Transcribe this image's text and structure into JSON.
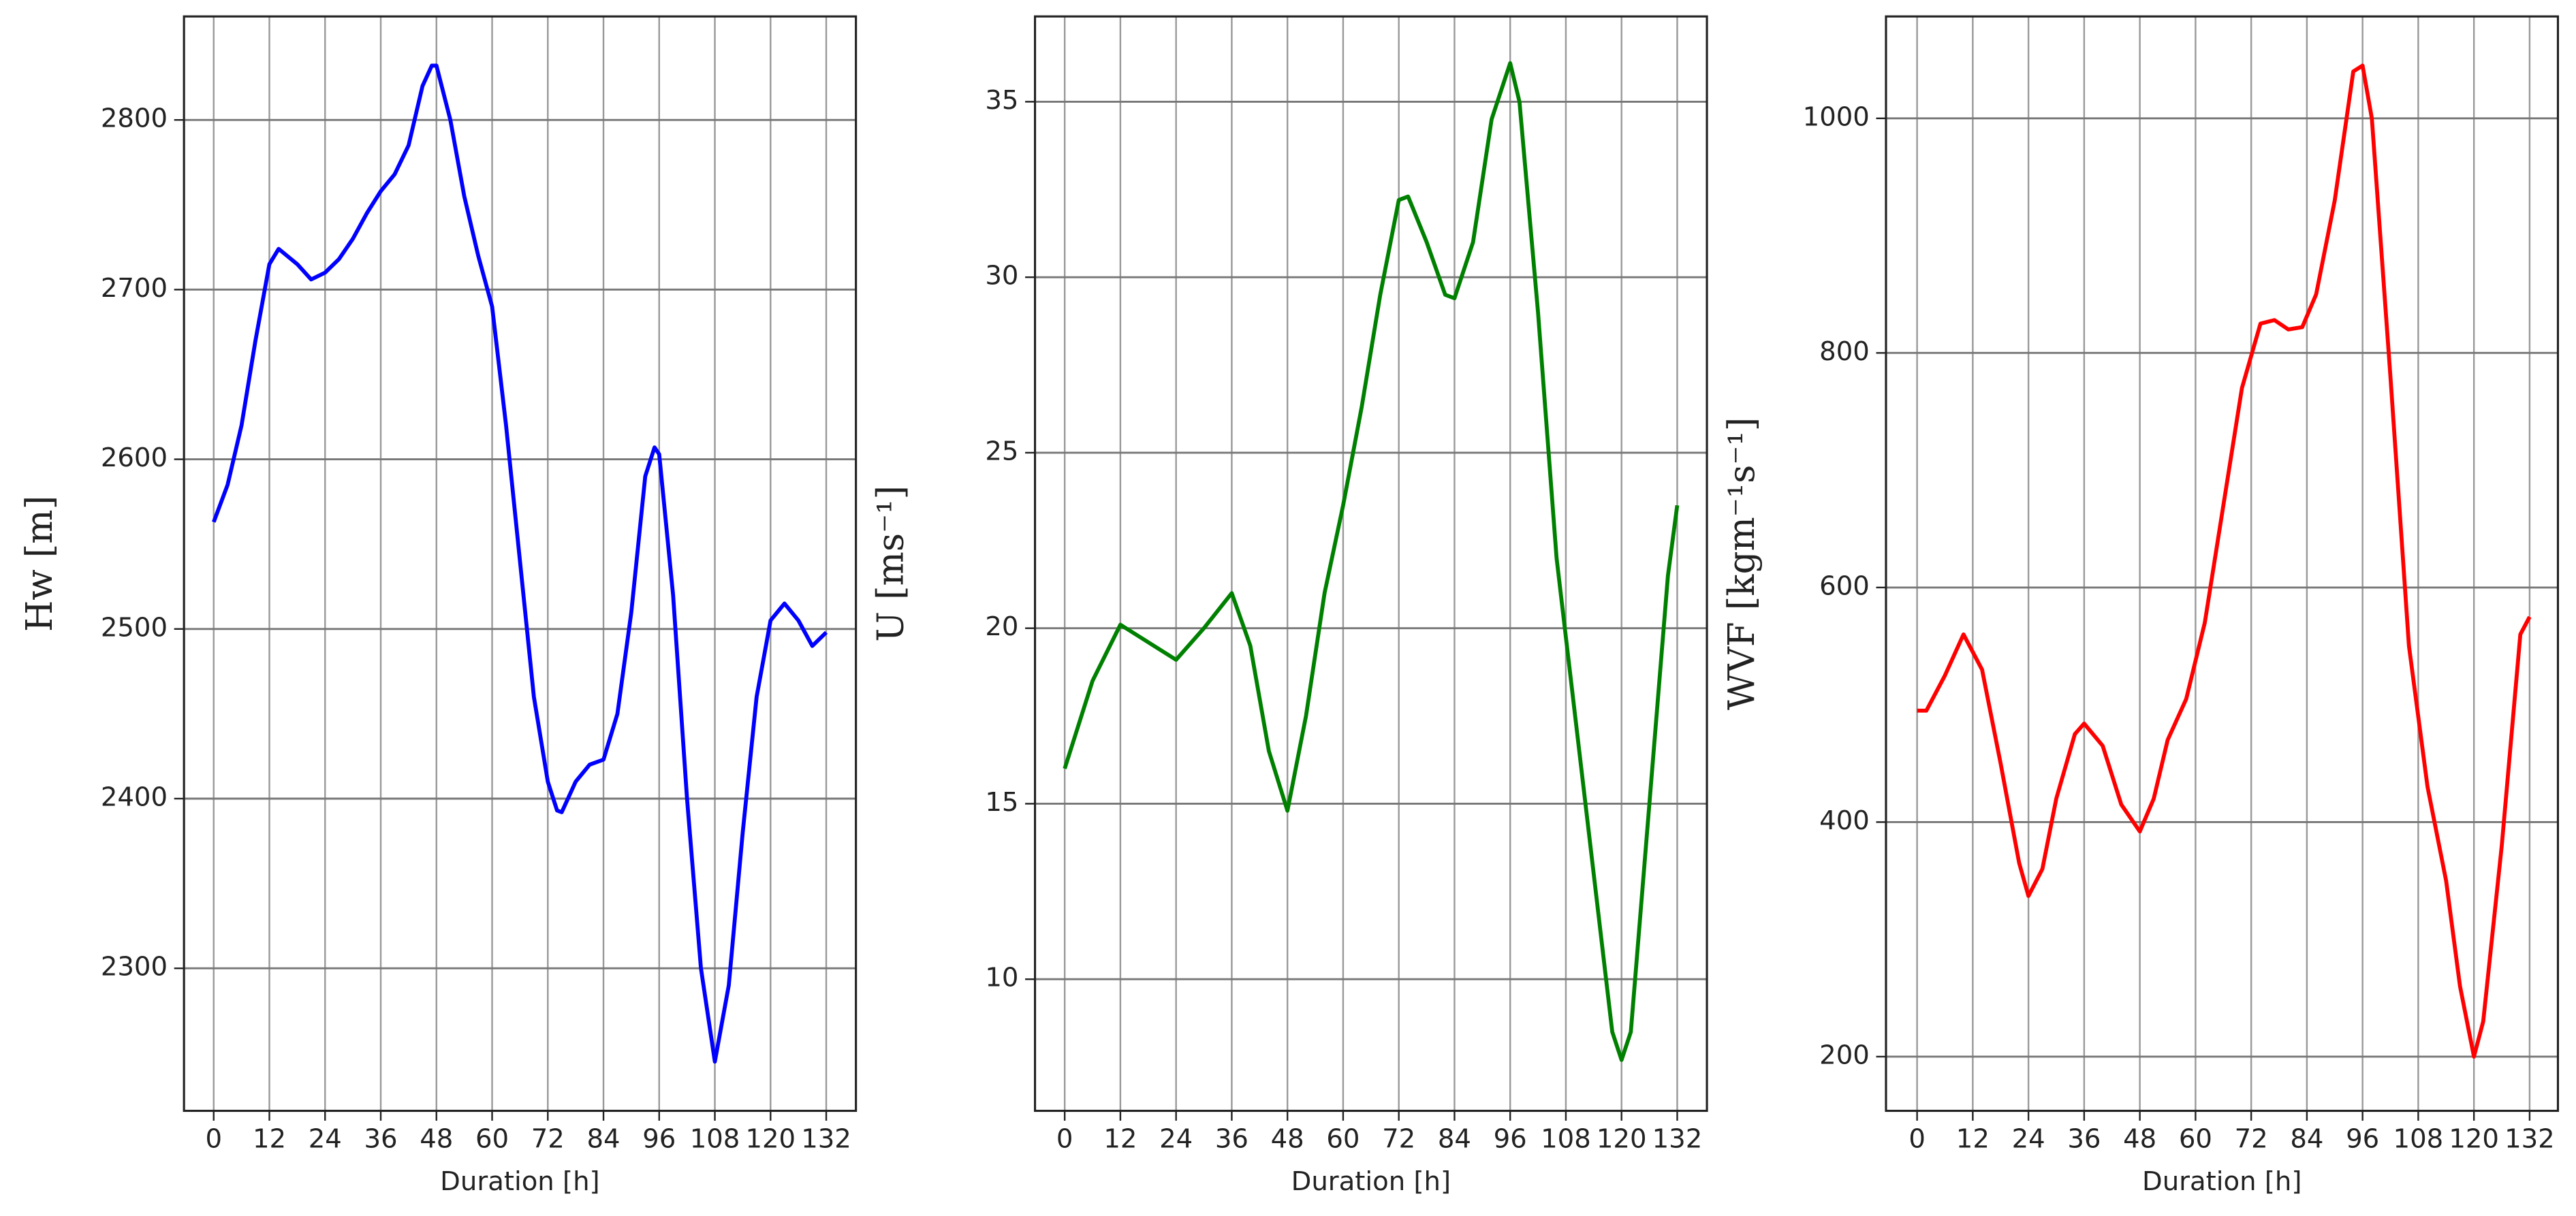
{
  "chart_data": [
    {
      "type": "line",
      "ylabel": "Hw [m]",
      "xlabel": "Duration [h]",
      "xlim": [
        -6.4,
        138.4
      ],
      "ylim": [
        2216,
        2861
      ],
      "xticks": [
        0,
        12,
        24,
        36,
        48,
        60,
        72,
        84,
        96,
        108,
        120,
        132
      ],
      "yticks": [
        2300,
        2400,
        2500,
        2600,
        2700,
        2800
      ],
      "grid": true,
      "series": [
        {
          "color": "#0000ff",
          "x": [
            0,
            3,
            6,
            9,
            12,
            14,
            18,
            21,
            24,
            27,
            30,
            33,
            36,
            39,
            42,
            45,
            47,
            48,
            51,
            54,
            57,
            60,
            63,
            66,
            69,
            72,
            74,
            75,
            78,
            81,
            84,
            87,
            90,
            93,
            95,
            96,
            99,
            102,
            105,
            108,
            111,
            114,
            117,
            120,
            123,
            126,
            129,
            132
          ],
          "values": [
            2563,
            2585,
            2620,
            2670,
            2715,
            2724,
            2715,
            2706,
            2710,
            2718,
            2730,
            2745,
            2758,
            2768,
            2785,
            2820,
            2832,
            2832,
            2800,
            2755,
            2720,
            2690,
            2620,
            2540,
            2460,
            2410,
            2393,
            2392,
            2410,
            2420,
            2423,
            2450,
            2510,
            2590,
            2607,
            2603,
            2520,
            2400,
            2300,
            2245,
            2290,
            2380,
            2460,
            2505,
            2515,
            2505,
            2490,
            2498
          ]
        }
      ]
    },
    {
      "type": "line",
      "ylabel": "U [ms⁻¹]",
      "xlabel": "Duration [h]",
      "xlim": [
        -6.4,
        138.4
      ],
      "ylim": [
        6.25,
        37.43
      ],
      "xticks": [
        0,
        12,
        24,
        36,
        48,
        60,
        72,
        84,
        96,
        108,
        120,
        132
      ],
      "yticks": [
        10,
        15,
        20,
        25,
        30,
        35
      ],
      "grid": true,
      "series": [
        {
          "color": "#008000",
          "x": [
            0,
            6,
            12,
            18,
            24,
            30,
            36,
            40,
            44,
            48,
            52,
            56,
            60,
            64,
            68,
            72,
            74,
            78,
            82,
            84,
            88,
            92,
            96,
            98,
            102,
            106,
            110,
            114,
            118,
            120,
            122,
            126,
            130,
            132
          ],
          "values": [
            16,
            18.5,
            20.1,
            19.6,
            19.1,
            20,
            21,
            19.5,
            16.5,
            14.8,
            17.5,
            21,
            23.5,
            26.3,
            29.5,
            32.2,
            32.3,
            31,
            29.5,
            29.4,
            31,
            34.5,
            36.1,
            35,
            29,
            22,
            17.5,
            13,
            8.5,
            7.7,
            8.5,
            15,
            21.5,
            23.5
          ]
        }
      ]
    },
    {
      "type": "line",
      "ylabel": "WVF [kgm⁻¹s⁻¹]",
      "xlabel": "Duration [h]",
      "xlim": [
        -6.7,
        138.1
      ],
      "ylim": [
        153.8,
        1086.9
      ],
      "xticks": [
        0,
        12,
        24,
        36,
        48,
        60,
        72,
        84,
        96,
        108,
        120,
        132
      ],
      "yticks": [
        200,
        400,
        600,
        800,
        1000
      ],
      "grid": true,
      "series": [
        {
          "color": "#ff0000",
          "x": [
            0,
            2,
            6,
            10,
            14,
            18,
            22,
            24,
            27,
            30,
            34,
            36,
            40,
            44,
            48,
            51,
            54,
            58,
            62,
            66,
            70,
            74,
            77,
            80,
            83,
            86,
            90,
            94,
            96,
            98,
            102,
            106,
            110,
            114,
            117,
            120,
            122,
            126,
            130,
            132
          ],
          "values": [
            495,
            495,
            525,
            560,
            530,
            450,
            365,
            337,
            360,
            420,
            475,
            484,
            465,
            415,
            392,
            420,
            470,
            505,
            570,
            670,
            770,
            825,
            828,
            820,
            822,
            850,
            930,
            1040,
            1045,
            1000,
            780,
            550,
            430,
            350,
            260,
            200,
            230,
            380,
            560,
            575
          ]
        }
      ]
    }
  ]
}
